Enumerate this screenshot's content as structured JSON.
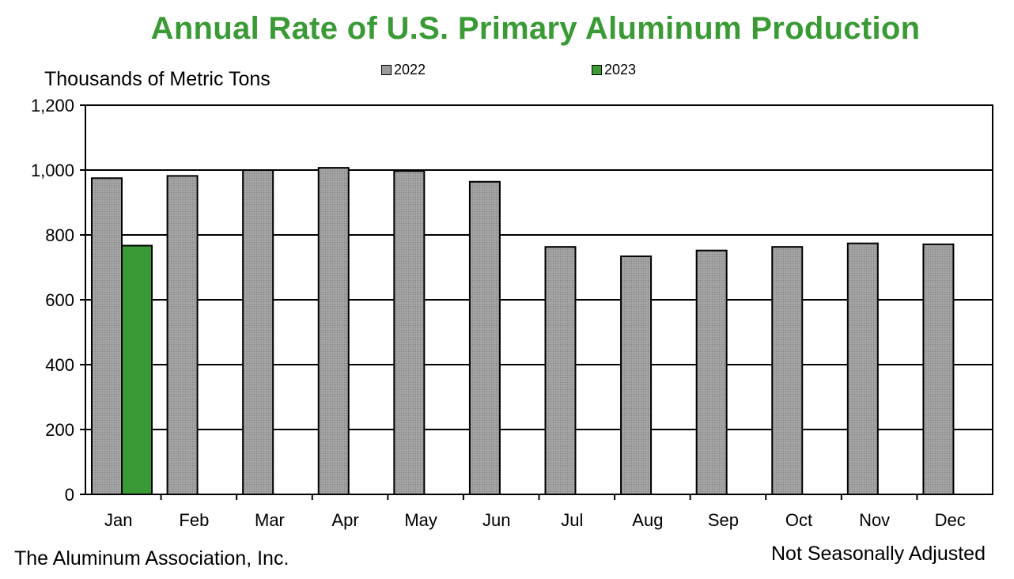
{
  "chart_data": {
    "type": "bar",
    "title": "Annual Rate of U.S. Primary Aluminum Production",
    "ylabel": "Thousands of Metric Tons",
    "xlabel": "",
    "categories": [
      "Jan",
      "Feb",
      "Mar",
      "Apr",
      "May",
      "Jun",
      "Jul",
      "Aug",
      "Sep",
      "Oct",
      "Nov",
      "Dec"
    ],
    "series": [
      {
        "name": "2022",
        "color": "#9a9a9a",
        "values": [
          975,
          982,
          1000,
          1007,
          997,
          964,
          763,
          734,
          752,
          763,
          774,
          771
        ]
      },
      {
        "name": "2023",
        "color": "#3a9a35",
        "values": [
          767,
          null,
          null,
          null,
          null,
          null,
          null,
          null,
          null,
          null,
          null,
          null
        ]
      }
    ],
    "ylim": [
      0,
      1200
    ],
    "yticks": [
      0,
      200,
      400,
      600,
      800,
      1000,
      1200
    ],
    "ytick_labels": [
      "0",
      "200",
      "400",
      "600",
      "800",
      "1,000",
      "1,200"
    ],
    "grid": true,
    "legend_position": "top"
  },
  "footer": {
    "source": "The Aluminum  Association, Inc.",
    "adjustment": "Not Seasonally Adjusted"
  }
}
